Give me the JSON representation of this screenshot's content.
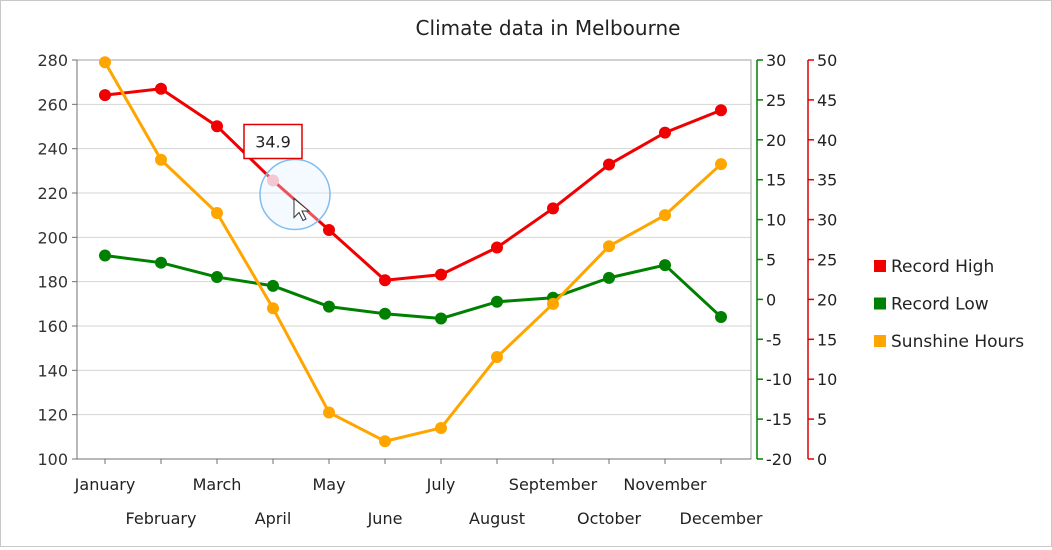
{
  "chart_data": {
    "type": "line",
    "title": "Climate data in Melbourne",
    "categories": [
      "January",
      "February",
      "March",
      "April",
      "May",
      "June",
      "July",
      "August",
      "September",
      "October",
      "November",
      "December"
    ],
    "axes": {
      "left": {
        "min": 100,
        "max": 280,
        "step": 20,
        "ticks": [
          "100",
          "120",
          "140",
          "160",
          "180",
          "200",
          "220",
          "240",
          "260",
          "280"
        ],
        "color": "#333333"
      },
      "right1": {
        "min": -20,
        "max": 30,
        "step": 5,
        "ticks": [
          "-20",
          "-15",
          "-10",
          "-5",
          "0",
          "5",
          "10",
          "15",
          "20",
          "25",
          "30"
        ],
        "color": "#008000"
      },
      "right2": {
        "min": 0,
        "max": 50,
        "step": 5,
        "ticks": [
          "0",
          "5",
          "10",
          "15",
          "20",
          "25",
          "30",
          "35",
          "40",
          "45",
          "50"
        ],
        "color": "#e00000"
      }
    },
    "grid": true,
    "legend_position": "right",
    "series": [
      {
        "name": "Record High",
        "axis": "right2",
        "color": "#f00000",
        "values": [
          45.6,
          46.4,
          41.7,
          34.9,
          28.7,
          22.4,
          23.1,
          26.5,
          31.4,
          36.9,
          40.9,
          43.7
        ]
      },
      {
        "name": "Record Low",
        "axis": "right1",
        "color": "#008000",
        "values": [
          5.5,
          4.6,
          2.8,
          1.7,
          -0.9,
          -1.8,
          -2.4,
          -0.3,
          0.2,
          2.7,
          4.3,
          -2.2
        ]
      },
      {
        "name": "Sunshine Hours",
        "axis": "left",
        "color": "#ffa500",
        "values": [
          279,
          235,
          211,
          168,
          121,
          108,
          114,
          146,
          170,
          196,
          210,
          233
        ]
      }
    ],
    "tooltip": {
      "series": "Record High",
      "category": "April",
      "value": "34.9"
    }
  }
}
